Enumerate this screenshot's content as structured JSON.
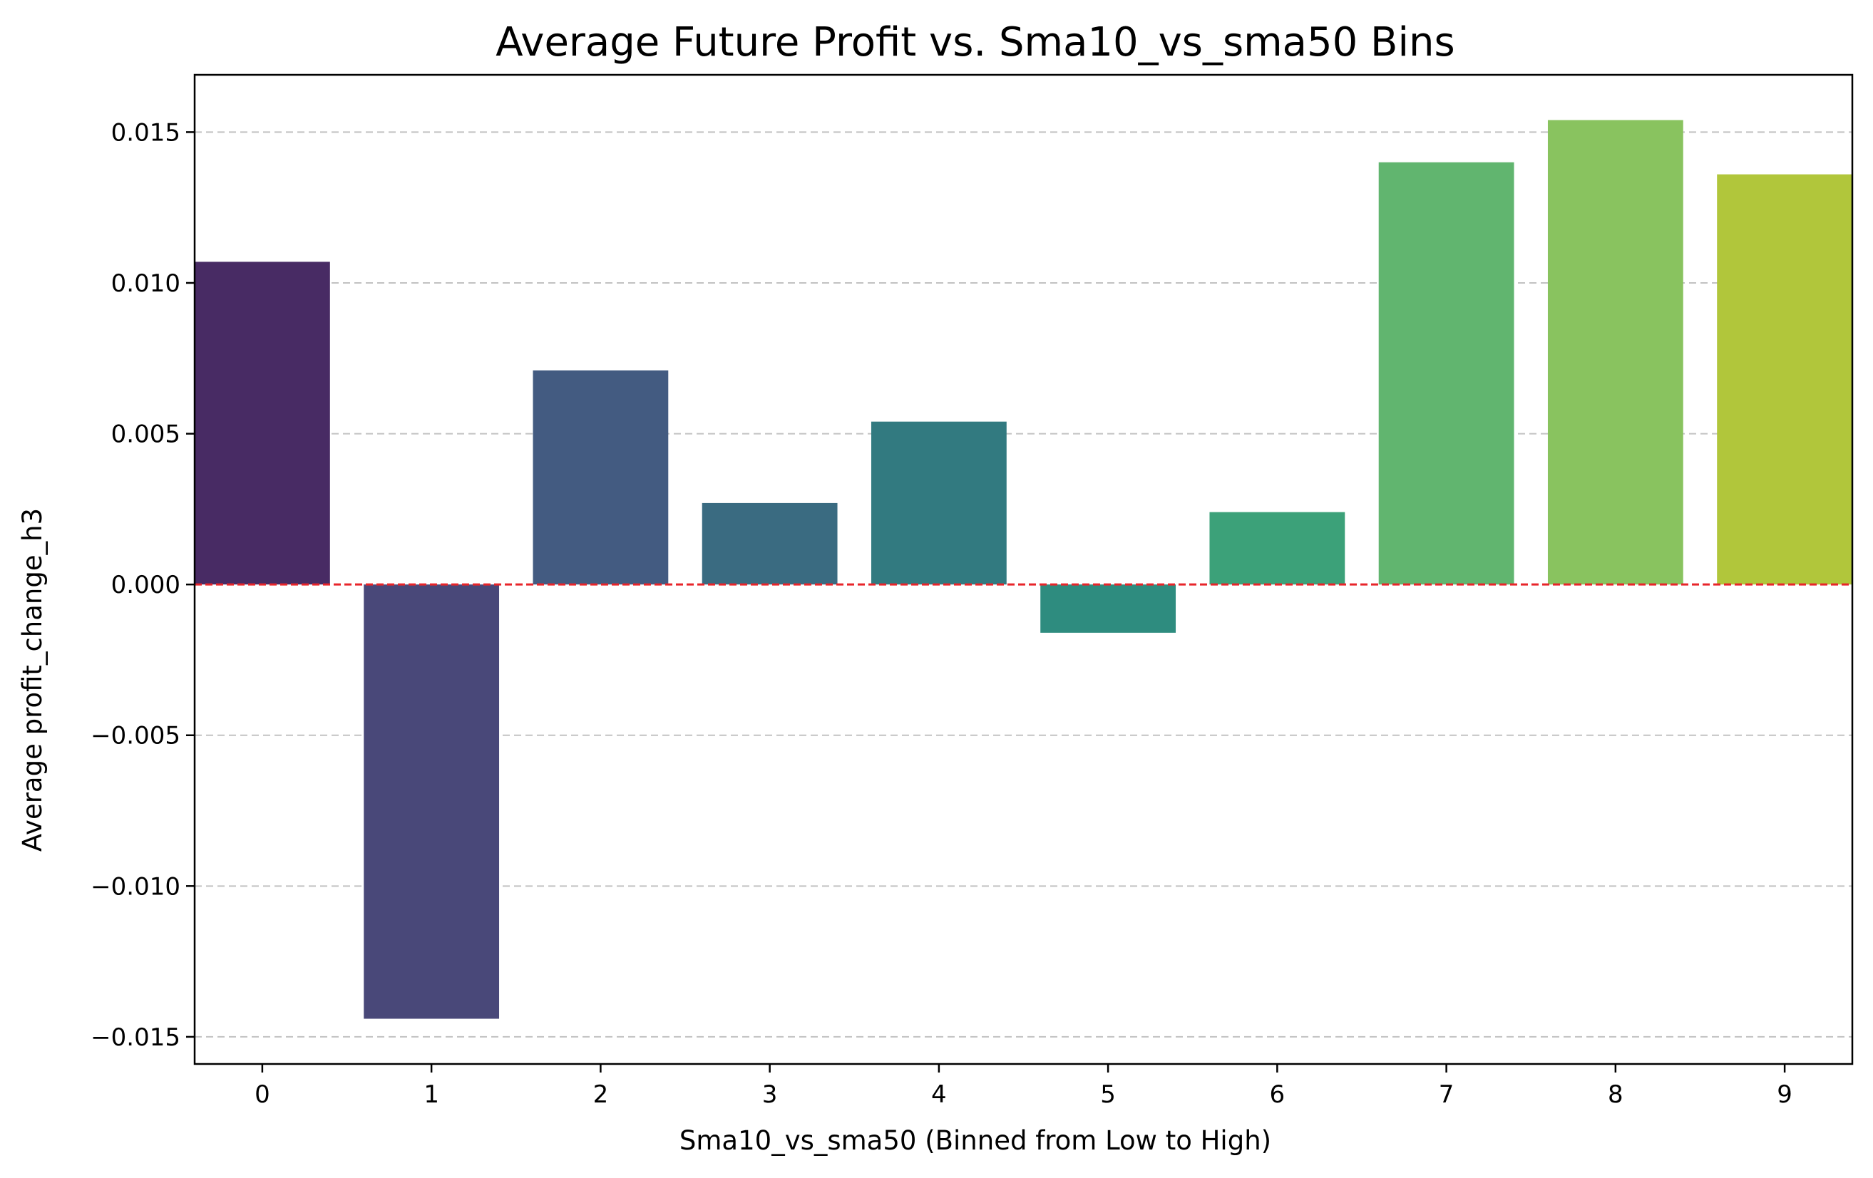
{
  "chart_data": {
    "type": "bar",
    "title": "Average Future Profit vs. Sma10_vs_sma50 Bins",
    "xlabel": "Sma10_vs_sma50 (Binned from Low to High)",
    "ylabel": "Average profit_change_h3",
    "categories": [
      "0",
      "1",
      "2",
      "3",
      "4",
      "5",
      "6",
      "7",
      "8",
      "9"
    ],
    "values": [
      0.0107,
      -0.0144,
      0.0071,
      0.0027,
      0.0054,
      -0.0016,
      0.0024,
      0.014,
      0.0154,
      0.0136
    ],
    "colors": [
      "#482b64",
      "#494879",
      "#435b81",
      "#3a6b81",
      "#327a80",
      "#2e8c7f",
      "#3ca179",
      "#61b56f",
      "#89c35f",
      "#b1c63b"
    ],
    "ylim": [
      -0.0159,
      0.0169
    ],
    "yticks": [
      -0.015,
      -0.01,
      -0.005,
      0.0,
      0.005,
      0.01,
      0.015
    ],
    "ytick_labels": [
      "−0.015",
      "−0.010",
      "−0.005",
      "0.000",
      "0.005",
      "0.010",
      "0.015"
    ],
    "grid": "y-dashed",
    "reference_line": {
      "y": 0,
      "color": "#e8252a",
      "style": "dashed"
    }
  }
}
